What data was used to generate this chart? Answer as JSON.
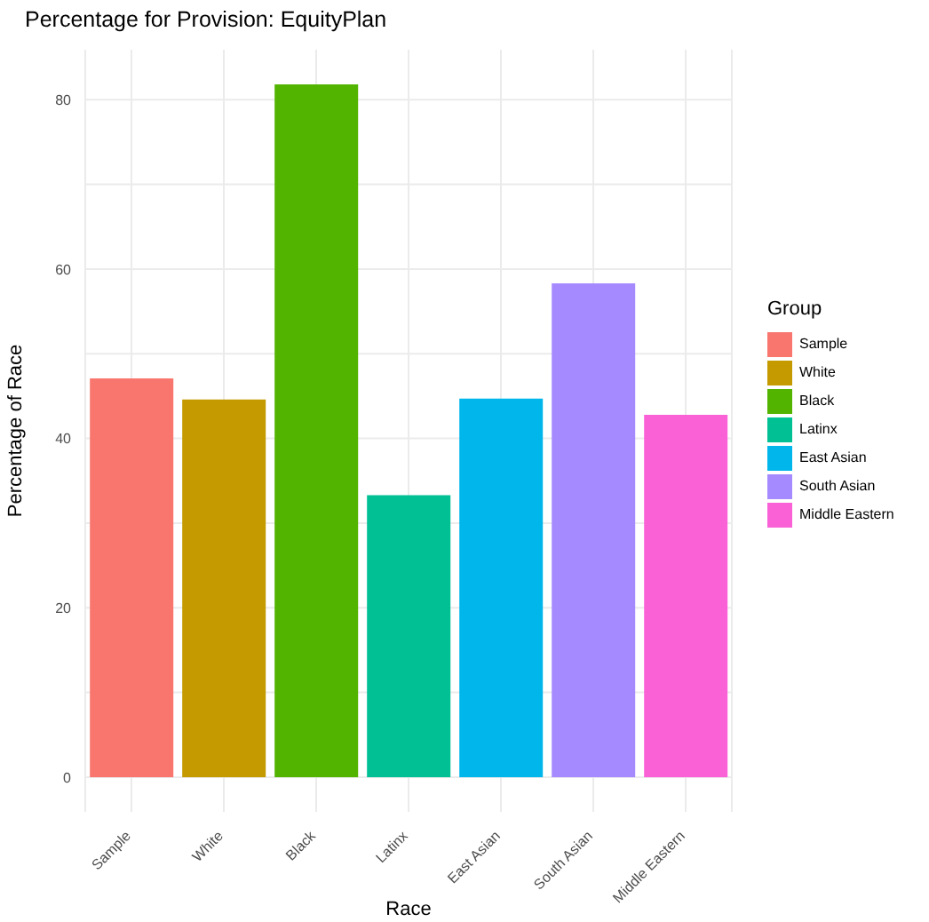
{
  "chart_data": {
    "type": "bar",
    "title": "Percentage for Provision: EquityPlan",
    "xlabel": "Race",
    "ylabel": "Percentage of Race",
    "legend_title": "Group",
    "categories": [
      "Sample",
      "White",
      "Black",
      "Latinx",
      "East Asian",
      "South Asian",
      "Middle Eastern"
    ],
    "stacked": true,
    "series": [
      {
        "name": "Sample",
        "color": "#f8766d",
        "values": [
          47.1,
          null,
          null,
          null,
          null,
          null,
          null
        ]
      },
      {
        "name": "White",
        "color": "#c49a00",
        "values": [
          null,
          44.6,
          null,
          null,
          null,
          null,
          null
        ]
      },
      {
        "name": "Black",
        "color": "#53b400",
        "values": [
          null,
          null,
          81.8,
          null,
          null,
          null,
          null
        ]
      },
      {
        "name": "Latinx",
        "color": "#00c094",
        "values": [
          null,
          null,
          null,
          33.3,
          null,
          null,
          null
        ]
      },
      {
        "name": "East Asian",
        "color": "#00b6eb",
        "values": [
          null,
          null,
          null,
          null,
          44.7,
          null,
          null
        ]
      },
      {
        "name": "South Asian",
        "color": "#a58aff",
        "values": [
          null,
          null,
          null,
          null,
          null,
          58.3,
          null
        ]
      },
      {
        "name": "Middle Eastern",
        "color": "#fb61d7",
        "values": [
          null,
          null,
          null,
          null,
          null,
          null,
          42.8
        ]
      }
    ],
    "ylim": [
      -4.1,
      85.9
    ],
    "yticks": [
      0,
      {
        "value": 10,
        "label": null
      },
      20,
      {
        "value": 30,
        "label": null
      },
      40,
      {
        "value": 50,
        "label": null
      },
      60,
      {
        "value": 70,
        "label": null
      },
      80
    ],
    "grid": true,
    "legend": "right"
  }
}
